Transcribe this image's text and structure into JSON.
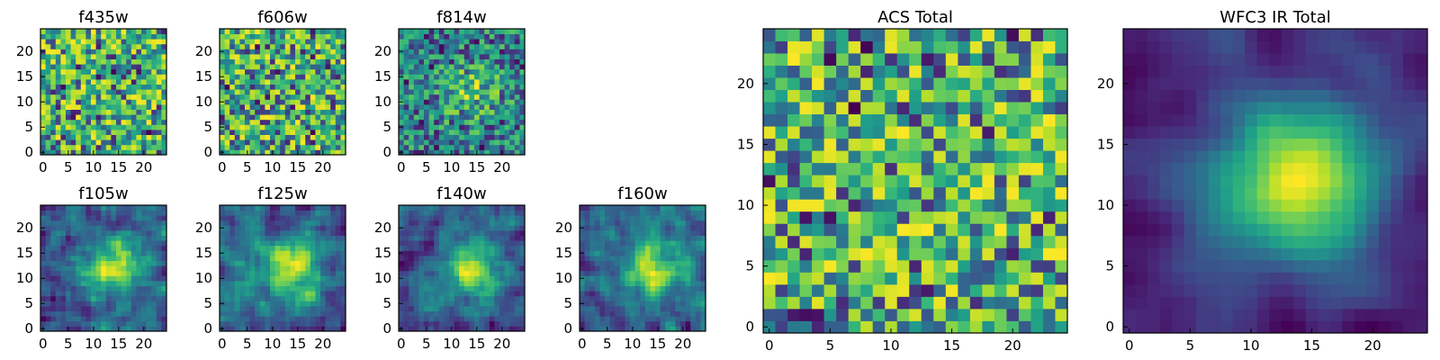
{
  "chart_data": [
    {
      "type": "heatmap",
      "title": "f435w",
      "pattern": "noise",
      "seed": 11,
      "grid_size": 25,
      "xlim": [
        0,
        24
      ],
      "ylim": [
        0,
        24
      ],
      "xticks": [
        0,
        5,
        10,
        15,
        20
      ],
      "yticks": [
        0,
        5,
        10,
        15,
        20
      ],
      "colormap": "viridis"
    },
    {
      "type": "heatmap",
      "title": "f606w",
      "pattern": "noise",
      "seed": 23,
      "grid_size": 25,
      "xlim": [
        0,
        24
      ],
      "ylim": [
        0,
        24
      ],
      "xticks": [
        0,
        5,
        10,
        15,
        20
      ],
      "yticks": [
        0,
        5,
        10,
        15,
        20
      ],
      "colormap": "viridis"
    },
    {
      "type": "heatmap",
      "title": "f814w",
      "pattern": "noise-blob",
      "seed": 37,
      "grid_size": 25,
      "xlim": [
        0,
        24
      ],
      "ylim": [
        0,
        24
      ],
      "xticks": [
        0,
        5,
        10,
        15,
        20
      ],
      "yticks": [
        0,
        5,
        10,
        15,
        20
      ],
      "colormap": "viridis"
    },
    {
      "type": "heatmap",
      "title": "f105w",
      "pattern": "blob",
      "seed": 41,
      "grid_size": 25,
      "xlim": [
        0,
        24
      ],
      "ylim": [
        0,
        24
      ],
      "xticks": [
        0,
        5,
        10,
        15,
        20
      ],
      "yticks": [
        0,
        5,
        10,
        15,
        20
      ],
      "colormap": "viridis"
    },
    {
      "type": "heatmap",
      "title": "f125w",
      "pattern": "blob",
      "seed": 53,
      "grid_size": 25,
      "xlim": [
        0,
        24
      ],
      "ylim": [
        0,
        24
      ],
      "xticks": [
        0,
        5,
        10,
        15,
        20
      ],
      "yticks": [
        0,
        5,
        10,
        15,
        20
      ],
      "colormap": "viridis"
    },
    {
      "type": "heatmap",
      "title": "f140w",
      "pattern": "blob",
      "seed": 67,
      "grid_size": 25,
      "xlim": [
        0,
        24
      ],
      "ylim": [
        0,
        24
      ],
      "xticks": [
        0,
        5,
        10,
        15,
        20
      ],
      "yticks": [
        0,
        5,
        10,
        15,
        20
      ],
      "colormap": "viridis"
    },
    {
      "type": "heatmap",
      "title": "f160w",
      "pattern": "blob",
      "seed": 79,
      "grid_size": 25,
      "xlim": [
        0,
        24
      ],
      "ylim": [
        0,
        24
      ],
      "xticks": [
        0,
        5,
        10,
        15,
        20
      ],
      "yticks": [
        0,
        5,
        10,
        15,
        20
      ],
      "colormap": "viridis"
    },
    {
      "type": "heatmap",
      "title": "ACS Total",
      "pattern": "noise",
      "seed": 97,
      "grid_size": 25,
      "xlim": [
        0,
        24
      ],
      "ylim": [
        0,
        24
      ],
      "xticks": [
        0,
        5,
        10,
        15,
        20
      ],
      "yticks": [
        0,
        5,
        10,
        15,
        20
      ],
      "colormap": "viridis"
    },
    {
      "type": "heatmap",
      "title": "WFC3 IR Total",
      "pattern": "smooth-blob",
      "seed": 101,
      "grid_size": 25,
      "xlim": [
        0,
        24
      ],
      "ylim": [
        0,
        24
      ],
      "xticks": [
        0,
        5,
        10,
        15,
        20
      ],
      "yticks": [
        0,
        5,
        10,
        15,
        20
      ],
      "colormap": "viridis"
    }
  ]
}
